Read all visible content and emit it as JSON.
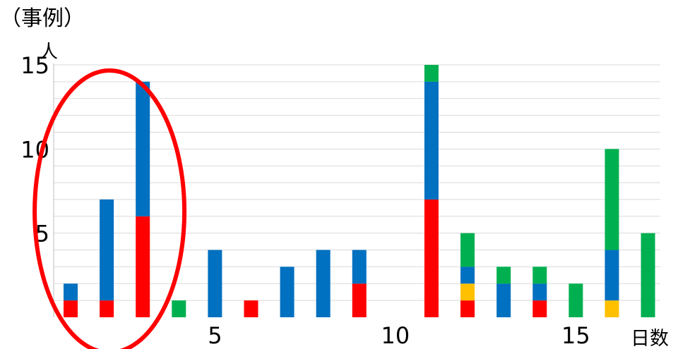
{
  "chart_data": {
    "type": "bar",
    "stacked": true,
    "title": "",
    "ylabel_top": "（事例）",
    "yunit": "人",
    "xunit": "日数",
    "ylim": [
      0,
      15
    ],
    "xlim": [
      0,
      17
    ],
    "y_ticks": [
      5,
      10,
      15
    ],
    "x_ticks": [
      5,
      10,
      15
    ],
    "grid": true,
    "categories": [
      1,
      2,
      3,
      4,
      5,
      6,
      7,
      8,
      9,
      10,
      11,
      12,
      13,
      14,
      15,
      16,
      17
    ],
    "series": [
      {
        "color": "#ff0000",
        "values": [
          1,
          1,
          6,
          0,
          0,
          1,
          0,
          0,
          2,
          0,
          7,
          1,
          0,
          1,
          0,
          0,
          0
        ]
      },
      {
        "color": "#ffc000",
        "values": [
          0,
          0,
          0,
          0,
          0,
          0,
          0,
          0,
          0,
          0,
          0,
          1,
          0,
          0,
          0,
          1,
          0
        ]
      },
      {
        "color": "#0070c0",
        "values": [
          1,
          6,
          8,
          0,
          4,
          0,
          3,
          4,
          2,
          0,
          7,
          1,
          2,
          1,
          0,
          3,
          0
        ]
      },
      {
        "color": "#00b050",
        "values": [
          0,
          0,
          0,
          1,
          0,
          0,
          0,
          0,
          0,
          0,
          1,
          2,
          1,
          1,
          2,
          6,
          5
        ]
      }
    ],
    "annotation": {
      "shape": "ellipse",
      "color": "#ff0000",
      "encloses_categories": [
        1,
        2,
        3
      ]
    }
  }
}
